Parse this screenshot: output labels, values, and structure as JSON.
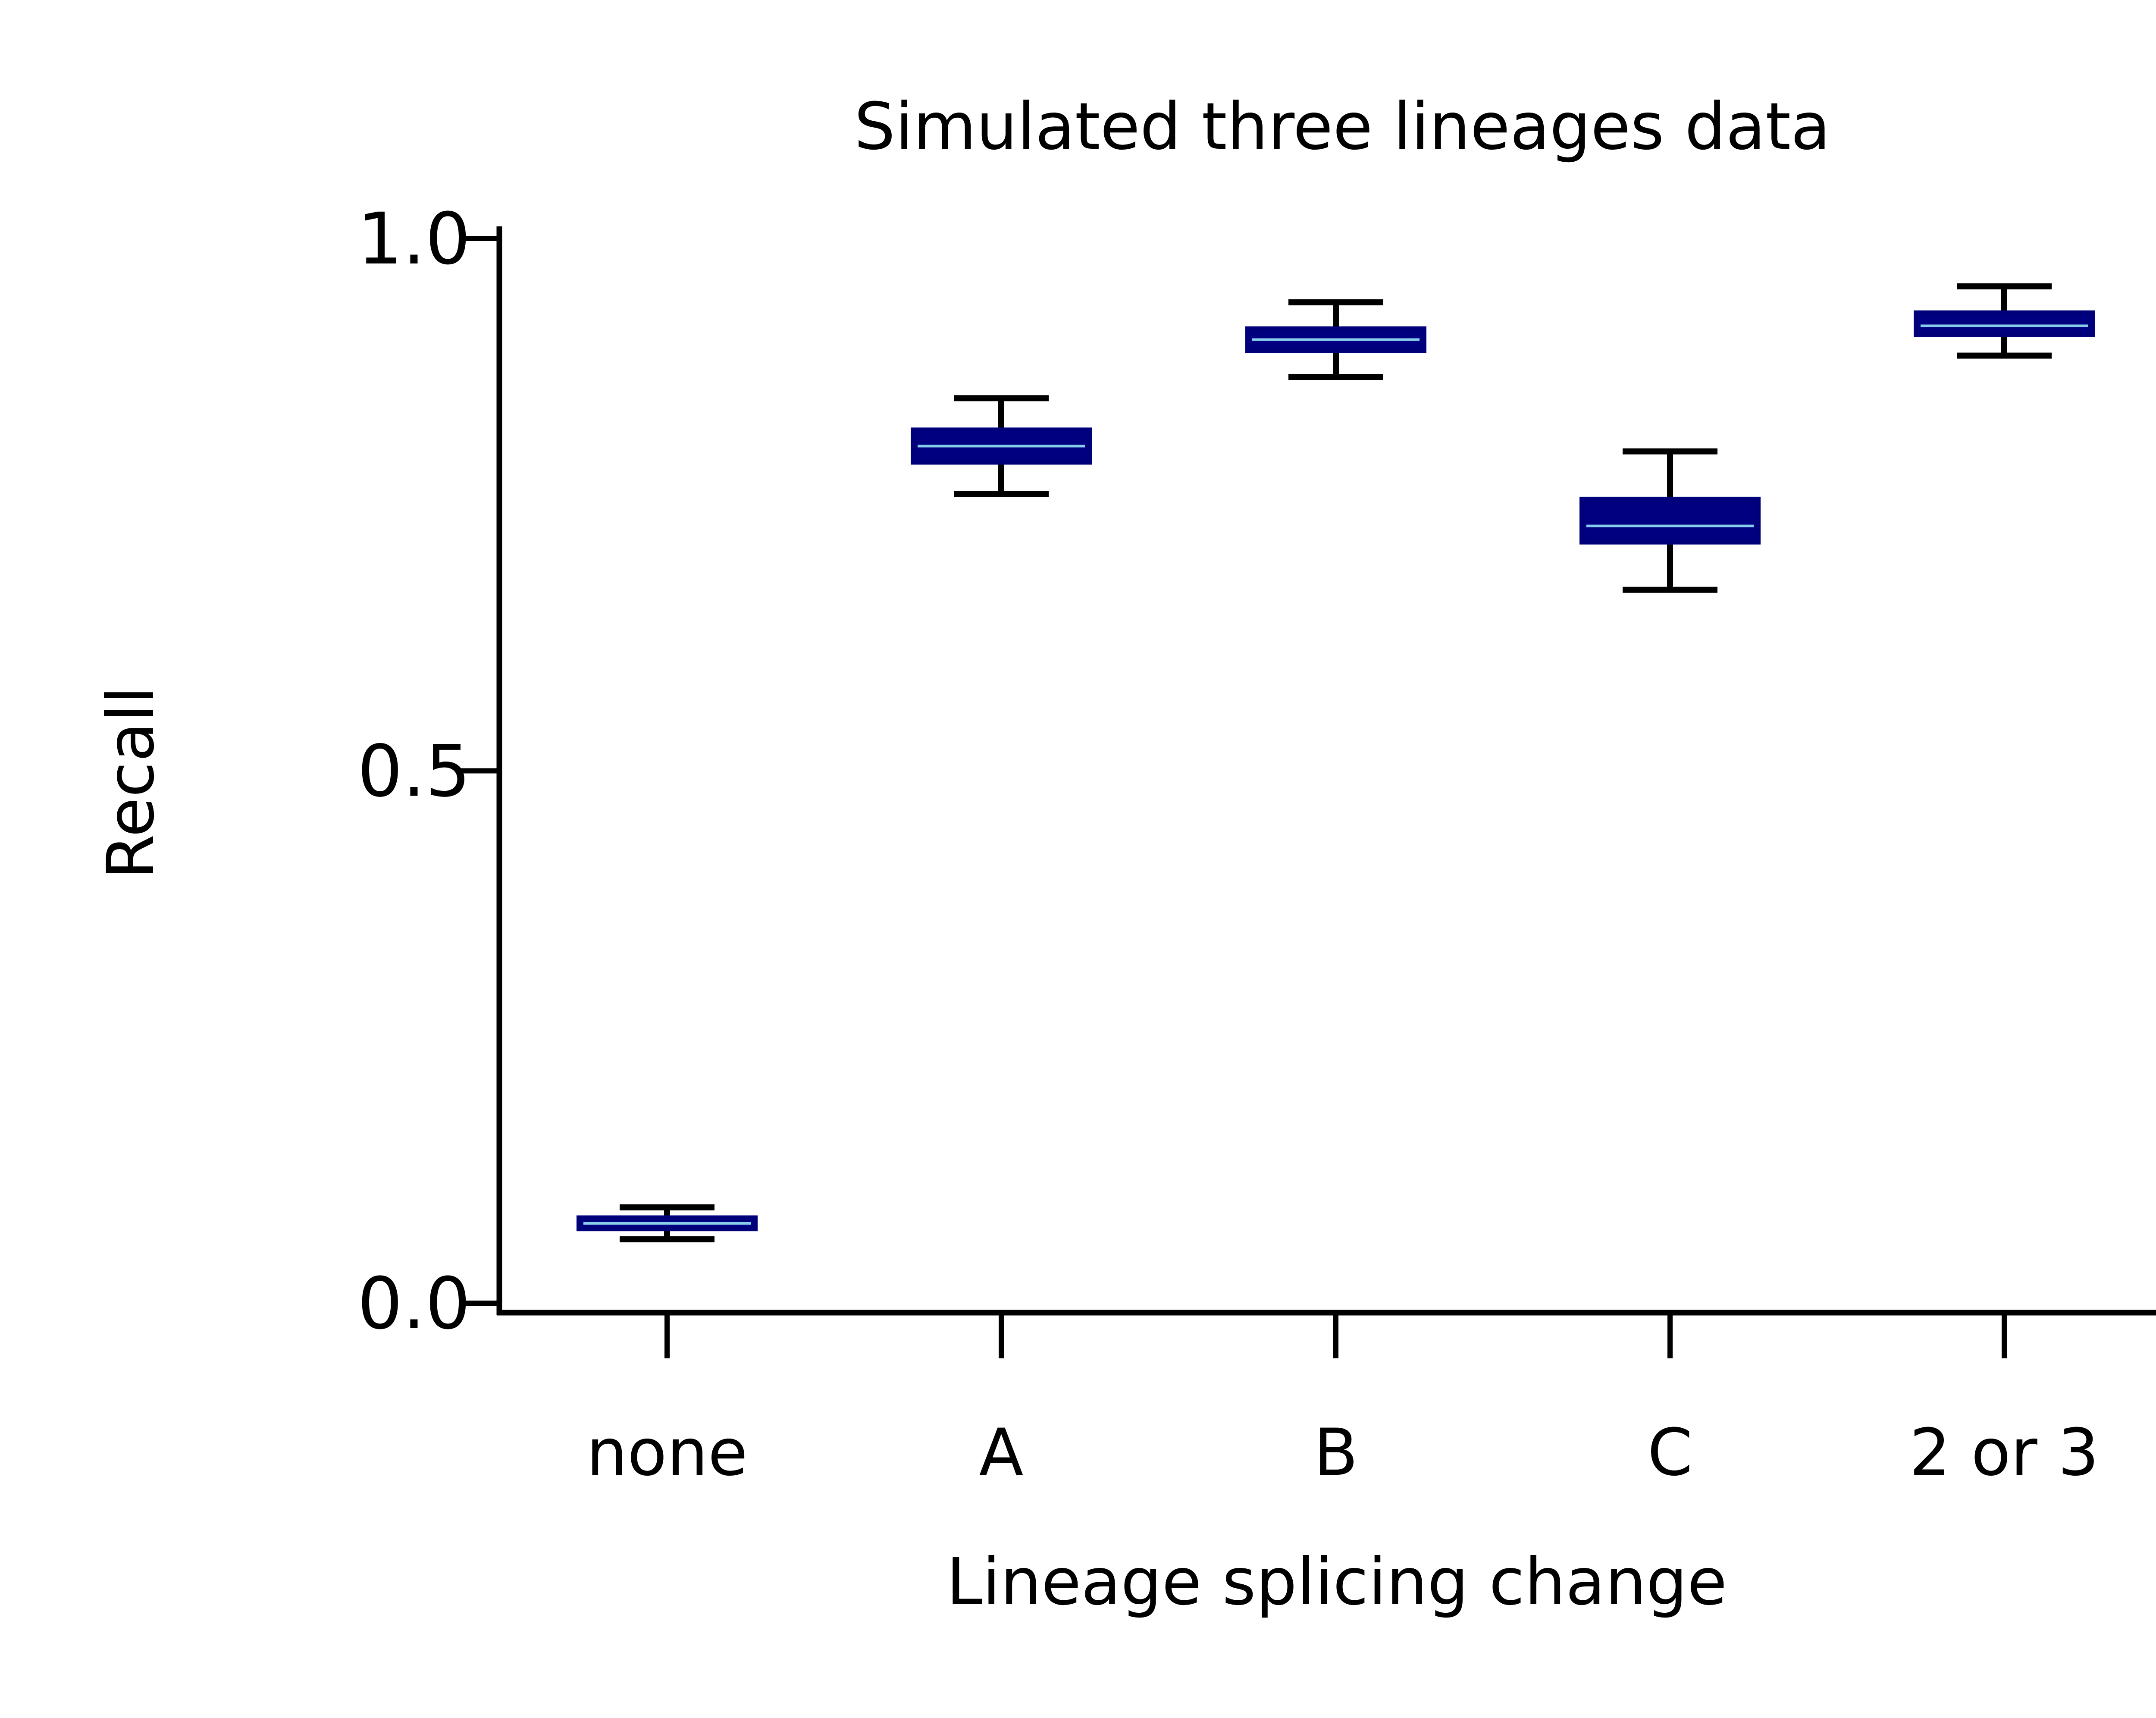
{
  "chart_data": {
    "type": "box",
    "title": "Simulated three lineages data",
    "xlabel": "Lineage splicing change",
    "ylabel": "Recall",
    "categories": [
      "none",
      "A",
      "B",
      "C",
      "2 or 3"
    ],
    "ylim": [
      0.0,
      1.0
    ],
    "yticks": [
      0.0,
      0.5,
      1.0
    ],
    "ytick_labels": [
      "0.0",
      "0.5",
      "1.0"
    ],
    "grid": false,
    "boxes": [
      {
        "category": "none",
        "whisker_low": 0.06,
        "q1": 0.07,
        "median": 0.075,
        "q3": 0.08,
        "whisker_high": 0.09
      },
      {
        "category": "A",
        "whisker_low": 0.76,
        "q1": 0.79,
        "median": 0.805,
        "q3": 0.82,
        "whisker_high": 0.85
      },
      {
        "category": "B",
        "whisker_low": 0.87,
        "q1": 0.895,
        "median": 0.905,
        "q3": 0.915,
        "whisker_high": 0.94
      },
      {
        "category": "C",
        "whisker_low": 0.67,
        "q1": 0.715,
        "median": 0.73,
        "q3": 0.755,
        "whisker_high": 0.8
      },
      {
        "category": "2 or 3",
        "whisker_low": 0.89,
        "q1": 0.91,
        "median": 0.918,
        "q3": 0.93,
        "whisker_high": 0.955
      }
    ],
    "colors": {
      "box_fill": "#000080",
      "box_edge": "#00007a",
      "median": "#87ceeb",
      "whisker": "#000000",
      "axis": "#000000"
    }
  }
}
